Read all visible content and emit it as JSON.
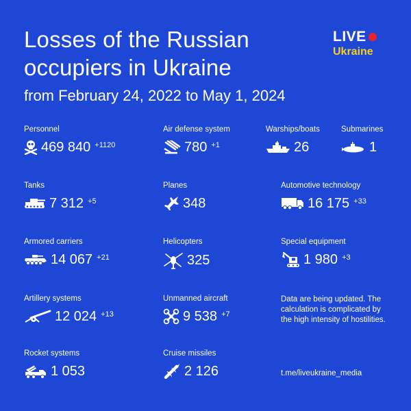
{
  "header": {
    "title_line1": "Losses of the Russian",
    "title_line2": "occupiers in Ukraine",
    "subtitle": "from February 24, 2022 to May 1, 2024"
  },
  "logo": {
    "live": "LIVE",
    "ukraine": "Ukraine"
  },
  "colors": {
    "background": "#1f47d6",
    "text": "#ffffff",
    "logo_dot": "#e8242c",
    "logo_ukraine": "#f5d020"
  },
  "stats": {
    "personnel": {
      "label": "Personnel",
      "value": "469 840",
      "delta": "+1120",
      "icon": "skull-crossbones-icon"
    },
    "air_defense": {
      "label": "Air defense system",
      "value": "780",
      "delta": "+1",
      "icon": "air-defense-icon"
    },
    "warships": {
      "label": "Warships/boats",
      "value": "26",
      "icon": "warship-icon"
    },
    "submarines": {
      "label": "Submarines",
      "value": "1",
      "icon": "submarine-icon"
    },
    "tanks": {
      "label": "Tanks",
      "value": "7 312",
      "delta": "+5",
      "icon": "tank-icon"
    },
    "planes": {
      "label": "Planes",
      "value": "348",
      "icon": "plane-icon"
    },
    "automotive": {
      "label": "Automotive technology",
      "value": "16 175",
      "delta": "+33",
      "icon": "truck-icon"
    },
    "armored": {
      "label": "Armored carriers",
      "value": "14 067",
      "delta": "+21",
      "icon": "armored-carrier-icon"
    },
    "helicopters": {
      "label": "Helicopters",
      "value": "325",
      "icon": "helicopter-icon"
    },
    "special": {
      "label": "Special equipment",
      "value": "1 980",
      "delta": "+3",
      "icon": "excavator-icon"
    },
    "artillery": {
      "label": "Artillery systems",
      "value": "12 024",
      "delta": "+13",
      "icon": "artillery-icon"
    },
    "drones": {
      "label": "Unmanned aircraft",
      "value": "9 538",
      "delta": "+7",
      "icon": "drone-icon"
    },
    "rockets": {
      "label": "Rocket systems",
      "value": "1 053",
      "icon": "rocket-launcher-icon"
    },
    "cruise": {
      "label": "Cruise missiles",
      "value": "2 126",
      "icon": "cruise-missile-icon"
    }
  },
  "note": "Data are being updated. The calculation is complicated by the high intensity of hostilities.",
  "link": "t.me/liveukraine_media"
}
